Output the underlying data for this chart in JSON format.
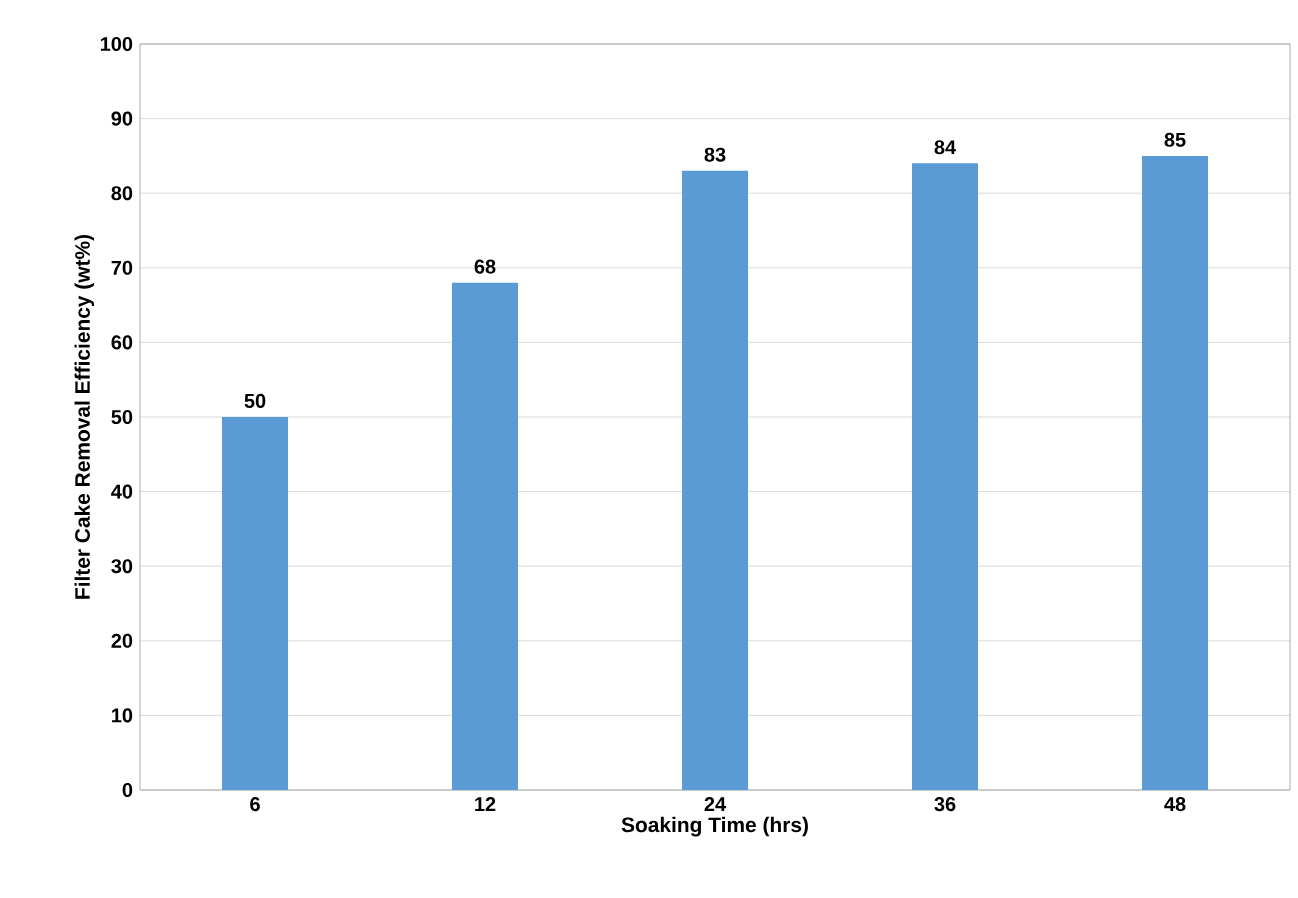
{
  "chart_data": {
    "type": "bar",
    "xlabel": "Soaking Time (hrs)",
    "ylabel": "Filter Cake Removal Efficiency (wt%)",
    "categories": [
      "6",
      "12",
      "24",
      "36",
      "48"
    ],
    "values": [
      50,
      68,
      83,
      84,
      85
    ],
    "color": "#5b9bd5",
    "ylim": [
      0,
      100
    ],
    "yticks": [
      0,
      10,
      20,
      30,
      40,
      50,
      60,
      70,
      80,
      90,
      100
    ],
    "grid": "y",
    "data_labels": true
  }
}
